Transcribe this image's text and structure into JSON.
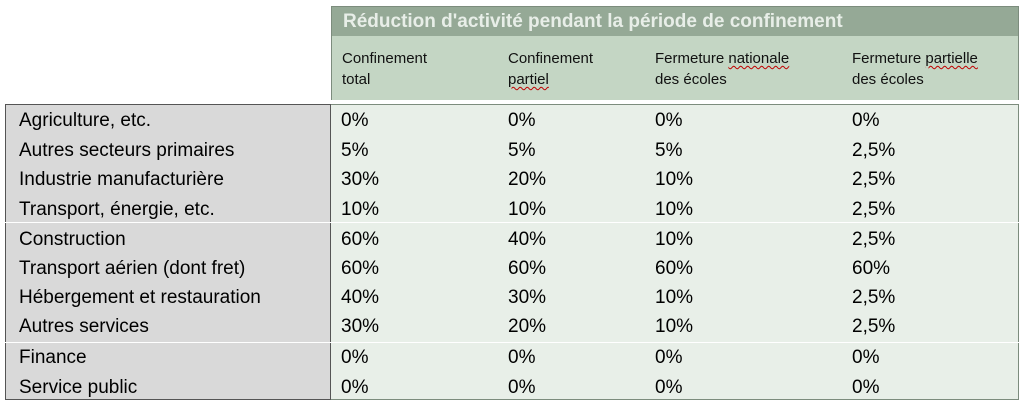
{
  "title": "Réduction d'activité pendant la période de confinement",
  "columns": [
    {
      "line1": "Confinement",
      "line2": "total",
      "line1_squiggle": [],
      "line2_squiggle": false
    },
    {
      "line1": "Confinement",
      "line2": "partiel",
      "line2_squiggle": true
    },
    {
      "line1": "Fermeture  nationale",
      "line2": "des écoles",
      "line2_squiggle": false
    },
    {
      "line1": "Fermeture partielle",
      "line2": "des écoles",
      "line2_squiggle": false
    }
  ],
  "rows": [
    {
      "label": "Agriculture, etc.",
      "values": [
        "0%",
        "0%",
        "0%",
        "0%"
      ]
    },
    {
      "label": "Autres secteurs primaires",
      "values": [
        "5%",
        "5%",
        "5%",
        "2,5%"
      ]
    },
    {
      "label": "Industrie manufacturière",
      "values": [
        "30%",
        "20%",
        "10%",
        "2,5%"
      ]
    },
    {
      "label": "Transport, énergie, etc.",
      "values": [
        "10%",
        "10%",
        "10%",
        "2,5%"
      ]
    },
    {
      "label": "Construction",
      "values": [
        "60%",
        "40%",
        "10%",
        "2,5%"
      ]
    },
    {
      "label": "Transport aérien (dont fret)",
      "values": [
        "60%",
        "60%",
        "60%",
        "60%"
      ]
    },
    {
      "label": "Hébergement et restauration",
      "values": [
        "40%",
        "30%",
        "10%",
        "2,5%"
      ]
    },
    {
      "label": "Autres services",
      "values": [
        "30%",
        "20%",
        "10%",
        "2,5%"
      ]
    },
    {
      "label": "Finance",
      "values": [
        "0%",
        "0%",
        "0%",
        "0%"
      ]
    },
    {
      "label": "Service public",
      "values": [
        "0%",
        "0%",
        "0%",
        "0%"
      ]
    }
  ]
}
